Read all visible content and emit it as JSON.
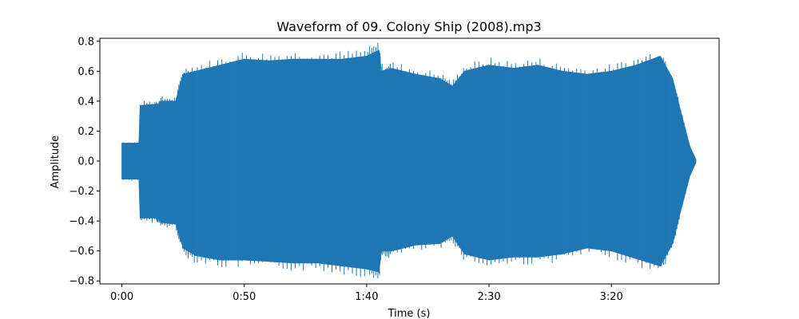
{
  "chart_data": {
    "type": "area",
    "title": "Waveform of 09. Colony Ship (2008).mp3",
    "xlabel": "Time (s)",
    "ylabel": "Amplitude",
    "xlim": [
      -9,
      244
    ],
    "ylim": [
      -0.82,
      0.82
    ],
    "grid": false,
    "color": "#1f77b4",
    "x_ticks": [
      {
        "value": 0,
        "label": "0:00"
      },
      {
        "value": 50,
        "label": "0:50"
      },
      {
        "value": 100,
        "label": "1:40"
      },
      {
        "value": 150,
        "label": "2:30"
      },
      {
        "value": 200,
        "label": "3:20"
      }
    ],
    "y_ticks": [
      {
        "value": 0.8,
        "label": "0.8"
      },
      {
        "value": 0.6,
        "label": "0.6"
      },
      {
        "value": 0.4,
        "label": "0.4"
      },
      {
        "value": 0.2,
        "label": "0.2"
      },
      {
        "value": 0.0,
        "label": "0.0"
      },
      {
        "value": -0.2,
        "label": "−0.2"
      },
      {
        "value": -0.4,
        "label": "−0.4"
      },
      {
        "value": -0.6,
        "label": "−0.6"
      },
      {
        "value": -0.8,
        "label": "−0.8"
      }
    ],
    "series": [
      {
        "x": [
          0,
          7,
          7.5,
          14,
          15,
          16,
          22,
          25,
          30,
          40,
          50,
          60,
          70,
          80,
          90,
          100,
          105,
          106,
          110,
          120,
          130,
          135,
          140,
          150,
          160,
          170,
          180,
          190,
          200,
          210,
          220,
          225,
          228,
          232,
          234.5
        ],
        "ymax": [
          0.12,
          0.12,
          0.37,
          0.38,
          0.37,
          0.4,
          0.4,
          0.58,
          0.6,
          0.64,
          0.68,
          0.67,
          0.68,
          0.68,
          0.68,
          0.7,
          0.74,
          0.6,
          0.62,
          0.58,
          0.55,
          0.5,
          0.6,
          0.64,
          0.62,
          0.64,
          0.6,
          0.58,
          0.6,
          0.64,
          0.7,
          0.55,
          0.35,
          0.1,
          0.01
        ],
        "ymin": [
          -0.12,
          -0.12,
          -0.38,
          -0.38,
          -0.38,
          -0.41,
          -0.42,
          -0.58,
          -0.63,
          -0.66,
          -0.66,
          -0.67,
          -0.68,
          -0.68,
          -0.7,
          -0.72,
          -0.74,
          -0.6,
          -0.6,
          -0.56,
          -0.55,
          -0.5,
          -0.62,
          -0.66,
          -0.64,
          -0.64,
          -0.62,
          -0.58,
          -0.6,
          -0.65,
          -0.7,
          -0.55,
          -0.35,
          -0.1,
          -0.01
        ]
      }
    ]
  }
}
